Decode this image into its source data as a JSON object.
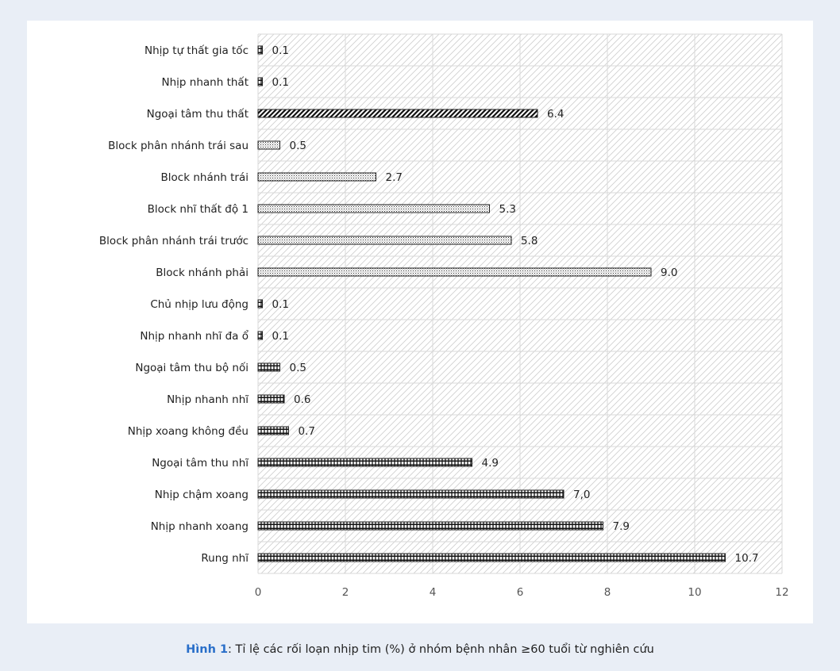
{
  "chart_data": {
    "type": "bar",
    "orientation": "horizontal",
    "categories": [
      "Nhịp tự thất gia tốc",
      "Nhịp nhanh thất",
      "Ngoại tâm thu thất",
      "Block phân nhánh trái sau",
      "Block nhánh trái",
      "Block nhĩ thất độ 1",
      "Block phân nhánh trái trước",
      "Block nhánh phải",
      "Chủ nhịp lưu động",
      "Nhịp nhanh nhĩ đa ổ",
      "Ngoại tâm thu bộ nối",
      "Nhịp nhanh nhĩ",
      "Nhịp xoang không đều",
      "Ngoại tâm thu nhĩ",
      "Nhịp chậm xoang",
      "Nhịp nhanh xoang",
      "Rung nhĩ"
    ],
    "values": [
      0.1,
      0.1,
      6.4,
      0.5,
      2.7,
      5.3,
      5.8,
      9.0,
      0.1,
      0.1,
      0.5,
      0.6,
      0.7,
      4.9,
      7.0,
      7.9,
      10.7
    ],
    "value_labels": [
      "0.1",
      "0.1",
      "6.4",
      "0.5",
      "2.7",
      "5.3",
      "5.8",
      "9.0",
      "0.1",
      "0.1",
      "0.5",
      "0.6",
      "0.7",
      "4.9",
      "7,0",
      "7.9",
      "10.7"
    ],
    "fill_patterns": [
      "hatch-grid",
      "hatch-grid",
      "diagonal-bold",
      "dots",
      "dots",
      "dots",
      "dots",
      "dots",
      "hatch-grid",
      "hatch-grid",
      "hatch-grid",
      "hatch-grid",
      "hatch-grid",
      "hatch-grid",
      "hatch-grid",
      "hatch-grid",
      "hatch-grid"
    ],
    "xlim": [
      0,
      12
    ],
    "x_ticks": [
      0,
      2,
      4,
      6,
      8,
      10,
      12
    ],
    "xlabel": "",
    "ylabel": "",
    "grid": true,
    "plot_background": "diagonal-hatch",
    "colors": {
      "bar_stroke": "#222222",
      "grid": "#d9d9d9",
      "hatch": "#d0d0d0"
    }
  },
  "caption": {
    "label": "Hình 1",
    "text": ": Tỉ lệ các rối loạn nhịp tim (%) ở nhóm bệnh nhân ≥60 tuổi từ nghiên cứu",
    "label_color": "#2a6fc9"
  }
}
